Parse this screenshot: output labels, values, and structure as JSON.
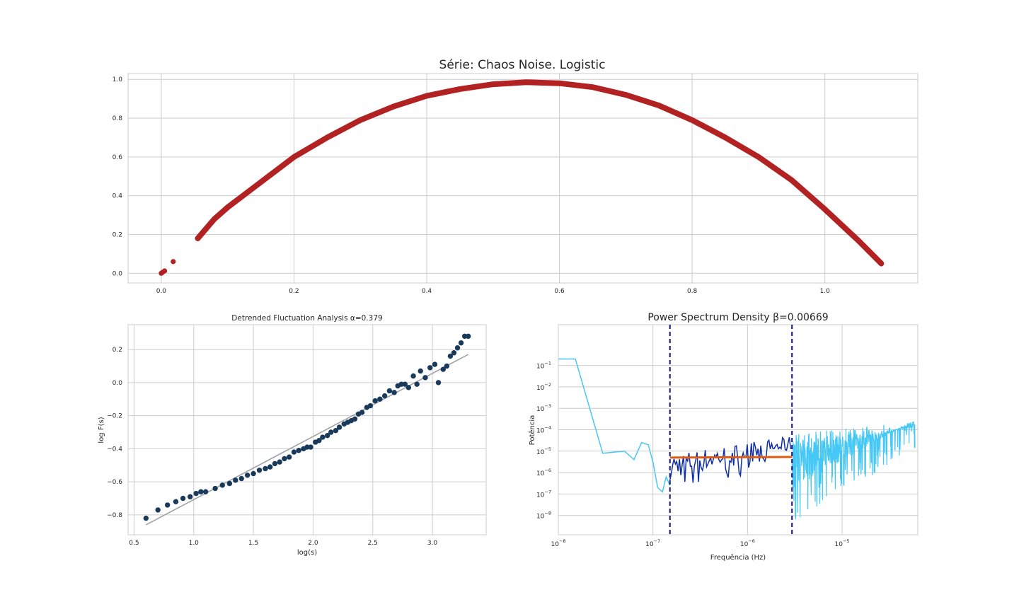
{
  "chart_data": [
    {
      "type": "scatter",
      "title": "Série: Chaos Noise. Logistic",
      "xlabel": "",
      "ylabel": "",
      "xlim": [
        -0.05,
        1.14
      ],
      "ylim": [
        -0.05,
        1.03
      ],
      "xticks": [
        "0.0",
        "0.2",
        "0.4",
        "0.6",
        "0.8",
        "1.0"
      ],
      "yticks": [
        "0.0",
        "0.2",
        "0.4",
        "0.6",
        "0.8",
        "1.0"
      ],
      "grid": true,
      "colors": {
        "points": "#b22222"
      },
      "series": [
        {
          "x": [
            0.0,
            0.002,
            0.005,
            0.018,
            0.055,
            0.08,
            0.1,
            0.15,
            0.2,
            0.25,
            0.3,
            0.35,
            0.4,
            0.45,
            0.5,
            0.55,
            0.6,
            0.65,
            0.7,
            0.75,
            0.8,
            0.85,
            0.9,
            0.95,
            1.0,
            1.05,
            1.085
          ],
          "y": [
            0.0,
            0.005,
            0.012,
            0.06,
            0.18,
            0.28,
            0.34,
            0.47,
            0.6,
            0.7,
            0.79,
            0.86,
            0.915,
            0.95,
            0.975,
            0.985,
            0.98,
            0.96,
            0.92,
            0.865,
            0.79,
            0.7,
            0.6,
            0.48,
            0.33,
            0.17,
            0.05
          ]
        }
      ]
    },
    {
      "type": "scatter",
      "title": "Detrended Fluctuation Analysis α=0.379",
      "xlabel": "log(s)",
      "ylabel": "log F(s)",
      "xlim": [
        0.45,
        3.45
      ],
      "ylim": [
        -0.92,
        0.35
      ],
      "xticks": [
        "0.5",
        "1.0",
        "1.5",
        "2.0",
        "2.5",
        "3.0"
      ],
      "yticks": [
        "−0.8",
        "−0.6",
        "−0.4",
        "−0.2",
        "0.0",
        "0.2"
      ],
      "grid": true,
      "colors": {
        "points": "#1a3a5c",
        "fit": "#9ea3a8"
      },
      "fit_line": {
        "x": [
          0.6,
          3.3
        ],
        "y": [
          -0.86,
          0.17
        ]
      },
      "series": [
        {
          "x": [
            0.6,
            0.7,
            0.78,
            0.85,
            0.91,
            0.97,
            1.02,
            1.06,
            1.1,
            1.18,
            1.24,
            1.3,
            1.35,
            1.4,
            1.45,
            1.5,
            1.55,
            1.6,
            1.64,
            1.68,
            1.72,
            1.76,
            1.8,
            1.84,
            1.88,
            1.92,
            1.95,
            1.98,
            2.02,
            2.05,
            2.08,
            2.12,
            2.15,
            2.19,
            2.22,
            2.26,
            2.29,
            2.32,
            2.35,
            2.38,
            2.41,
            2.45,
            2.48,
            2.52,
            2.56,
            2.6,
            2.64,
            2.68,
            2.71,
            2.74,
            2.77,
            2.8,
            2.84,
            2.87,
            2.9,
            2.94,
            2.98,
            3.02,
            3.05,
            3.09,
            3.12,
            3.15,
            3.18,
            3.21,
            3.24,
            3.27,
            3.3
          ],
          "y": [
            -0.82,
            -0.77,
            -0.74,
            -0.72,
            -0.7,
            -0.69,
            -0.67,
            -0.66,
            -0.66,
            -0.64,
            -0.62,
            -0.61,
            -0.59,
            -0.58,
            -0.56,
            -0.55,
            -0.53,
            -0.52,
            -0.51,
            -0.49,
            -0.48,
            -0.46,
            -0.45,
            -0.42,
            -0.41,
            -0.4,
            -0.39,
            -0.39,
            -0.36,
            -0.35,
            -0.33,
            -0.32,
            -0.3,
            -0.29,
            -0.27,
            -0.25,
            -0.24,
            -0.23,
            -0.22,
            -0.19,
            -0.18,
            -0.15,
            -0.14,
            -0.11,
            -0.1,
            -0.08,
            -0.05,
            -0.06,
            -0.02,
            -0.01,
            -0.01,
            -0.03,
            0.04,
            -0.01,
            0.07,
            0.03,
            0.09,
            0.11,
            0.0,
            0.08,
            0.1,
            0.16,
            0.18,
            0.21,
            0.24,
            0.28,
            0.28
          ]
        }
      ]
    },
    {
      "type": "line",
      "title": "Power Spectrum Density β=0.00669",
      "xlabel": "Frequência (Hz)",
      "ylabel": "Potência",
      "log_x": true,
      "log_y": true,
      "xlim_exp": [
        -8.0,
        -4.2
      ],
      "ylim_exp": [
        -8.9,
        0.9
      ],
      "xticks": [
        {
          "base": "10",
          "exp": "−8"
        },
        {
          "base": "10",
          "exp": "−7"
        },
        {
          "base": "10",
          "exp": "−6"
        },
        {
          "base": "10",
          "exp": "−5"
        }
      ],
      "yticks": [
        {
          "base": "10",
          "exp": "−1"
        },
        {
          "base": "10",
          "exp": "−2"
        },
        {
          "base": "10",
          "exp": "−3"
        },
        {
          "base": "10",
          "exp": "−4"
        },
        {
          "base": "10",
          "exp": "−5"
        },
        {
          "base": "10",
          "exp": "−6"
        },
        {
          "base": "10",
          "exp": "−7"
        },
        {
          "base": "10",
          "exp": "−8"
        }
      ],
      "grid": true,
      "colors": {
        "full": "#45c8f5",
        "fit_region": "#0f2fa8",
        "fit_line": "#e05a10",
        "cutoff": "#14147a"
      },
      "cutoffs_exp": [
        -6.82,
        -5.53
      ],
      "fit_line": {
        "x_exp": [
          -6.82,
          -5.53
        ],
        "y_exp": [
          -5.3,
          -5.27
        ]
      },
      "full_series_exp": {
        "x": [
          -8.0,
          -7.82,
          -7.53,
          -7.3,
          -7.2,
          -7.12,
          -7.05,
          -7.0,
          -6.95,
          -6.9,
          -6.86,
          -6.82
        ],
        "y": [
          -0.7,
          -0.7,
          -5.1,
          -5.0,
          -5.4,
          -4.6,
          -4.7,
          -5.5,
          -6.7,
          -6.9,
          -6.2,
          -6.6
        ]
      },
      "fit_region_range_exp": {
        "x": [
          -6.82,
          -5.53
        ],
        "y_low": [
          -6.9,
          -5.6
        ],
        "y_high": [
          -5.1,
          -4.3
        ]
      },
      "high_freq_range_exp": {
        "x": [
          -5.53,
          -4.23
        ],
        "y_low": [
          -8.3,
          -5.0
        ],
        "y_high": [
          -4.2,
          -3.6
        ]
      }
    }
  ]
}
